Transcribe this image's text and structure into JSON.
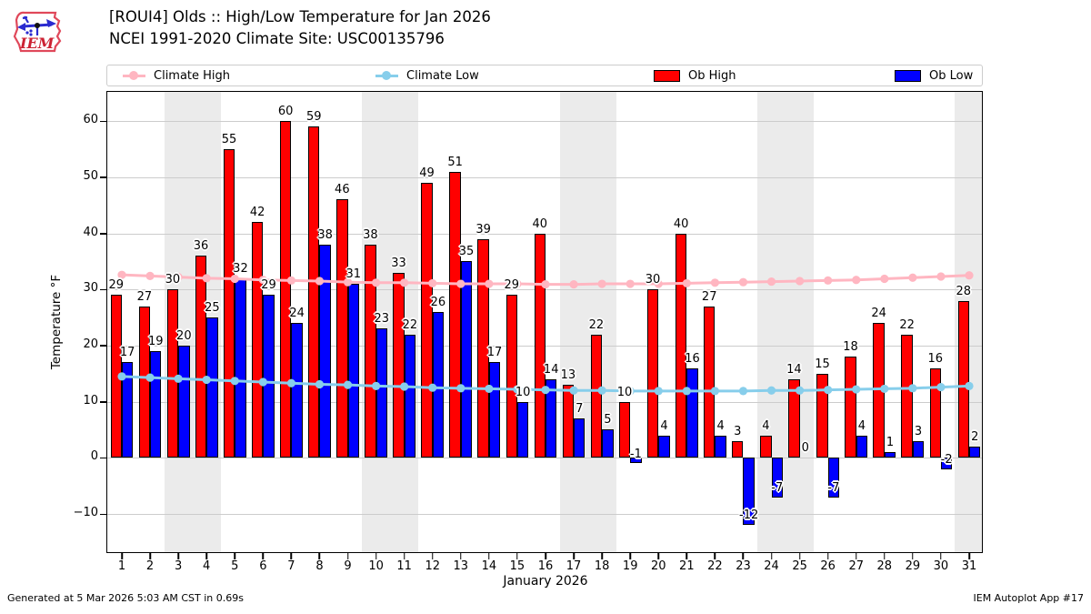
{
  "header": {
    "title_line1": "[ROUI4] Olds :: High/Low Temperature for Jan 2026",
    "title_line2": "NCEI 1991-2020 Climate Site: USC00135796",
    "logo_text": "IEM"
  },
  "legend": [
    {
      "label": "Climate High",
      "type": "line",
      "color": "#ffb6c1"
    },
    {
      "label": "Climate Low",
      "type": "line",
      "color": "#87ceeb"
    },
    {
      "label": "Ob High",
      "type": "patch",
      "color": "#ff0000"
    },
    {
      "label": "Ob Low",
      "type": "patch",
      "color": "#0000ff"
    }
  ],
  "footer": {
    "left": "Generated at 5 Mar 2026 5:03 AM CST in 0.69s",
    "right": "IEM Autoplot App #17"
  },
  "chart_data": {
    "type": "bar",
    "title": "[ROUI4] Olds :: High/Low Temperature for Jan 2026",
    "subtitle": "NCEI 1991-2020 Climate Site: USC00135796",
    "xlabel": "January 2026",
    "ylabel": "Temperature °F",
    "x": [
      1,
      2,
      3,
      4,
      5,
      6,
      7,
      8,
      9,
      10,
      11,
      12,
      13,
      14,
      15,
      16,
      17,
      18,
      19,
      20,
      21,
      22,
      23,
      24,
      25,
      26,
      27,
      28,
      29,
      30,
      31
    ],
    "ylim": [
      -16.8,
      65.2
    ],
    "yticks": [
      -10,
      0,
      10,
      20,
      30,
      40,
      50,
      60
    ],
    "grid": true,
    "legend_position": "top",
    "weekend_bands": [
      [
        3,
        4
      ],
      [
        10,
        11
      ],
      [
        17,
        18
      ],
      [
        24,
        25
      ],
      [
        31,
        31
      ]
    ],
    "series": [
      {
        "name": "Ob High",
        "type": "bar",
        "color": "#ff0000",
        "values": [
          29,
          27,
          30,
          36,
          55,
          42,
          60,
          59,
          46,
          38,
          33,
          49,
          51,
          39,
          29,
          40,
          13,
          22,
          10,
          30,
          40,
          27,
          3,
          4,
          14,
          15,
          18,
          24,
          22,
          16,
          28
        ]
      },
      {
        "name": "Ob Low",
        "type": "bar",
        "color": "#0000ff",
        "values": [
          17,
          19,
          20,
          25,
          32,
          29,
          24,
          38,
          31,
          23,
          22,
          26,
          35,
          17,
          10,
          14,
          7,
          5,
          -1,
          4,
          16,
          4,
          -12,
          -7,
          0,
          -7,
          4,
          1,
          3,
          -2,
          2
        ]
      },
      {
        "name": "Climate High",
        "type": "line",
        "color": "#ffb6c1",
        "values": [
          32.6,
          32.4,
          32.2,
          32.0,
          31.9,
          31.7,
          31.6,
          31.5,
          31.3,
          31.2,
          31.2,
          31.1,
          31.0,
          31.0,
          31.0,
          30.9,
          30.9,
          31.0,
          31.0,
          31.0,
          31.1,
          31.2,
          31.3,
          31.4,
          31.5,
          31.6,
          31.7,
          31.9,
          32.1,
          32.3,
          32.5
        ]
      },
      {
        "name": "Climate Low",
        "type": "line",
        "color": "#87ceeb",
        "values": [
          14.5,
          14.3,
          14.1,
          13.9,
          13.7,
          13.5,
          13.3,
          13.1,
          13.0,
          12.8,
          12.7,
          12.5,
          12.4,
          12.3,
          12.2,
          12.1,
          12.0,
          12.0,
          11.9,
          11.9,
          11.9,
          11.9,
          11.9,
          12.0,
          12.0,
          12.1,
          12.2,
          12.3,
          12.4,
          12.6,
          12.8
        ]
      }
    ]
  }
}
